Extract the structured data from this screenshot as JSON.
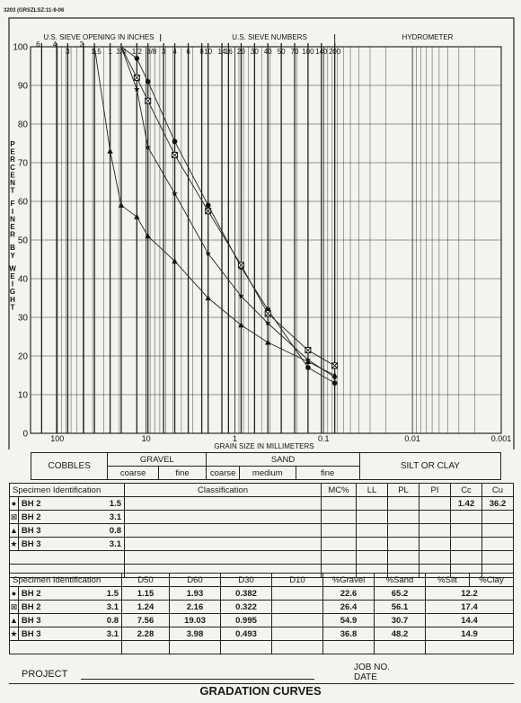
{
  "header_code": "3203 (GRSZLSZ:11-9-06",
  "chart_data": {
    "type": "line",
    "title": "",
    "xlabel": "GRAIN SIZE IN MILLIMETERS",
    "ylabel": "PERCENT FINER BY WEIGHT",
    "x_scale": "log",
    "xlim": [
      0.001,
      200
    ],
    "ylim": [
      0,
      100
    ],
    "x_ticks": [
      100,
      10,
      1,
      0.1,
      0.01,
      0.001
    ],
    "x_tick_labels": [
      "100",
      "10",
      "1",
      "0.1",
      "0.01",
      "0.001"
    ],
    "y_ticks": [
      0,
      10,
      20,
      30,
      40,
      50,
      60,
      70,
      80,
      90,
      100
    ],
    "y_tick_labels": [
      "0",
      "10",
      "20",
      "30",
      "40",
      "50",
      "60",
      "70",
      "80",
      "90",
      "100"
    ],
    "top_labels": {
      "sieve_inches_title": "U.S. SIEVE OPENING IN INCHES",
      "sieve_numbers_title": "U.S. SIEVE NUMBERS",
      "hydrometer_title": "HYDROMETER",
      "inch_sieves": [
        {
          "label": "6",
          "mm": 150
        },
        {
          "label": "4",
          "mm": 101.6
        },
        {
          "label": "3",
          "mm": 76.2
        },
        {
          "label": "2",
          "mm": 50.8
        },
        {
          "label": "1.5",
          "mm": 38.1
        },
        {
          "label": "1",
          "mm": 25.4
        },
        {
          "label": "3/4",
          "mm": 19.05
        },
        {
          "label": "1/2",
          "mm": 12.7
        },
        {
          "label": "3/8",
          "mm": 9.525
        }
      ],
      "number_sieves": [
        {
          "label": "3",
          "mm": 6.35
        },
        {
          "label": "4",
          "mm": 4.75
        },
        {
          "label": "6",
          "mm": 3.35
        },
        {
          "label": "8",
          "mm": 2.36
        },
        {
          "label": "10",
          "mm": 2.0
        },
        {
          "label": "14",
          "mm": 1.4
        },
        {
          "label": "16",
          "mm": 1.18
        },
        {
          "label": "20",
          "mm": 0.85
        },
        {
          "label": "30",
          "mm": 0.6
        },
        {
          "label": "40",
          "mm": 0.425
        },
        {
          "label": "50",
          "mm": 0.3
        },
        {
          "label": "70",
          "mm": 0.212
        },
        {
          "label": "100",
          "mm": 0.15
        },
        {
          "label": "140",
          "mm": 0.106
        },
        {
          "label": "200",
          "mm": 0.075
        }
      ]
    },
    "series": [
      {
        "marker": "circle",
        "x": [
          19.05,
          12.7,
          9.525,
          4.75,
          2.0,
          0.85,
          0.425,
          0.15,
          0.075
        ],
        "y": [
          100,
          97,
          91,
          75.5,
          59,
          43,
          32,
          17,
          13
        ]
      },
      {
        "marker": "boxed-x",
        "x": [
          19.05,
          12.7,
          9.525,
          4.75,
          2.0,
          0.85,
          0.425,
          0.15,
          0.075
        ],
        "y": [
          100,
          92,
          86,
          72,
          57.5,
          43.5,
          31,
          21.5,
          17.5
        ]
      },
      {
        "marker": "triangle",
        "x": [
          38.1,
          25.4,
          19.05,
          12.7,
          9.525,
          4.75,
          2.0,
          0.85,
          0.425,
          0.15,
          0.075
        ],
        "y": [
          100,
          73,
          59,
          56,
          51,
          44.5,
          35,
          28,
          23.5,
          18.5,
          15
        ]
      },
      {
        "marker": "star",
        "x": [
          19.05,
          12.7,
          9.525,
          4.75,
          2.0,
          0.85,
          0.425,
          0.15,
          0.075
        ],
        "y": [
          100,
          89,
          74,
          62,
          46.5,
          35.5,
          28.5,
          19,
          14.5
        ]
      }
    ]
  },
  "classification": {
    "cobbles": "COBBLES",
    "gravel": "GRAVEL",
    "gravel_coarse": "coarse",
    "gravel_fine": "fine",
    "sand": "SAND",
    "sand_coarse": "coarse",
    "sand_medium": "medium",
    "sand_fine": "fine",
    "silt_clay": "SILT OR CLAY"
  },
  "table1": {
    "headers": [
      "Specimen Identification",
      "Classification",
      "MC%",
      "LL",
      "PL",
      "PI",
      "Cc",
      "Cu"
    ],
    "rows": [
      {
        "symbol": "●",
        "bh": "BH 2",
        "depth": "1.5",
        "cc": "1.42",
        "cu": "36.2"
      },
      {
        "symbol": "⊠",
        "bh": "BH 2",
        "depth": "3.1",
        "cc": "",
        "cu": ""
      },
      {
        "symbol": "▲",
        "bh": "BH 3",
        "depth": "0.8",
        "cc": "",
        "cu": ""
      },
      {
        "symbol": "★",
        "bh": "BH 3",
        "depth": "3.1",
        "cc": "",
        "cu": ""
      }
    ]
  },
  "table2": {
    "headers": [
      "Specimen Identification",
      "D50",
      "D60",
      "D30",
      "D10",
      "%Gravel",
      "%Sand",
      "%Silt",
      "%Clay"
    ],
    "rows": [
      {
        "symbol": "●",
        "bh": "BH 2",
        "depth": "1.5",
        "d50": "1.15",
        "d60": "1.93",
        "d30": "0.382",
        "d10": "",
        "gravel": "22.6",
        "sand": "65.2",
        "siltclay": "12.2"
      },
      {
        "symbol": "⊠",
        "bh": "BH 2",
        "depth": "3.1",
        "d50": "1.24",
        "d60": "2.16",
        "d30": "0.322",
        "d10": "",
        "gravel": "26.4",
        "sand": "56.1",
        "siltclay": "17.4"
      },
      {
        "symbol": "▲",
        "bh": "BH 3",
        "depth": "0.8",
        "d50": "7.56",
        "d60": "19.03",
        "d30": "0.995",
        "d10": "",
        "gravel": "54.9",
        "sand": "30.7",
        "siltclay": "14.4"
      },
      {
        "symbol": "★",
        "bh": "BH 3",
        "depth": "3.1",
        "d50": "2.28",
        "d60": "3.98",
        "d30": "0.493",
        "d10": "",
        "gravel": "36.8",
        "sand": "48.2",
        "siltclay": "14.9"
      }
    ]
  },
  "footer": {
    "project": "PROJECT",
    "job_no": "JOB NO.",
    "date": "DATE",
    "title": "GRADATION CURVES"
  }
}
